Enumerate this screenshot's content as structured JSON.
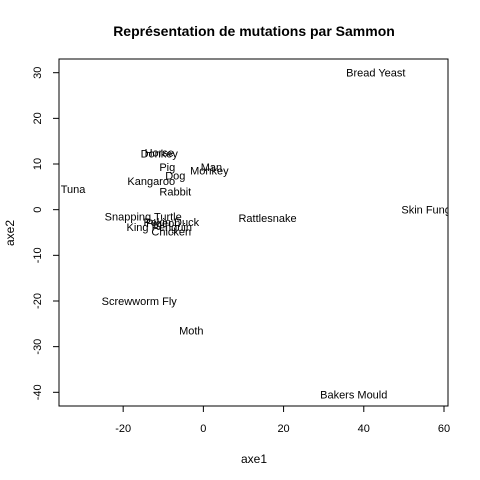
{
  "chart_data": {
    "type": "scatter",
    "title": "Représentation de mutations par Sammon",
    "xlabel": "axe1",
    "ylabel": "axe2",
    "xlim": [
      -36,
      61
    ],
    "ylim": [
      -43,
      33
    ],
    "xticks": [
      -20,
      0,
      20,
      40,
      60
    ],
    "yticks": [
      -40,
      -30,
      -20,
      -10,
      0,
      10,
      20,
      30
    ],
    "grid": false,
    "points": [
      {
        "label": "Bread Yeast",
        "x": 43,
        "y": 30
      },
      {
        "label": "Horse",
        "x": -11,
        "y": 12.5
      },
      {
        "label": "Donkey",
        "x": -11,
        "y": 12.3
      },
      {
        "label": "Man",
        "x": 2,
        "y": 9.3
      },
      {
        "label": "Pig",
        "x": -9,
        "y": 9.3
      },
      {
        "label": "Monkey",
        "x": 1.5,
        "y": 8.6
      },
      {
        "label": "Dog",
        "x": -7,
        "y": 7.5
      },
      {
        "label": "Kangaroo",
        "x": -13,
        "y": 6.3
      },
      {
        "label": "Rabbit",
        "x": -7,
        "y": 4
      },
      {
        "label": "Tuna",
        "x": -32.5,
        "y": 4.5
      },
      {
        "label": "Skin Fungus",
        "x": 57,
        "y": 0
      },
      {
        "label": "Snapping Turtle",
        "x": -15,
        "y": -1.5
      },
      {
        "label": "Pekin Duck",
        "x": -8,
        "y": -2.7
      },
      {
        "label": "Pigeon",
        "x": -10,
        "y": -2.9
      },
      {
        "label": "Rattlesnake",
        "x": 16,
        "y": -1.8
      },
      {
        "label": "King Penguin",
        "x": -11,
        "y": -3.8
      },
      {
        "label": "Chicken",
        "x": -8,
        "y": -4.8
      },
      {
        "label": "Screwworm Fly",
        "x": -16,
        "y": -20
      },
      {
        "label": "Moth",
        "x": -3,
        "y": -26.5
      },
      {
        "label": "Bakers Mould",
        "x": 37.5,
        "y": -40.5
      }
    ]
  }
}
